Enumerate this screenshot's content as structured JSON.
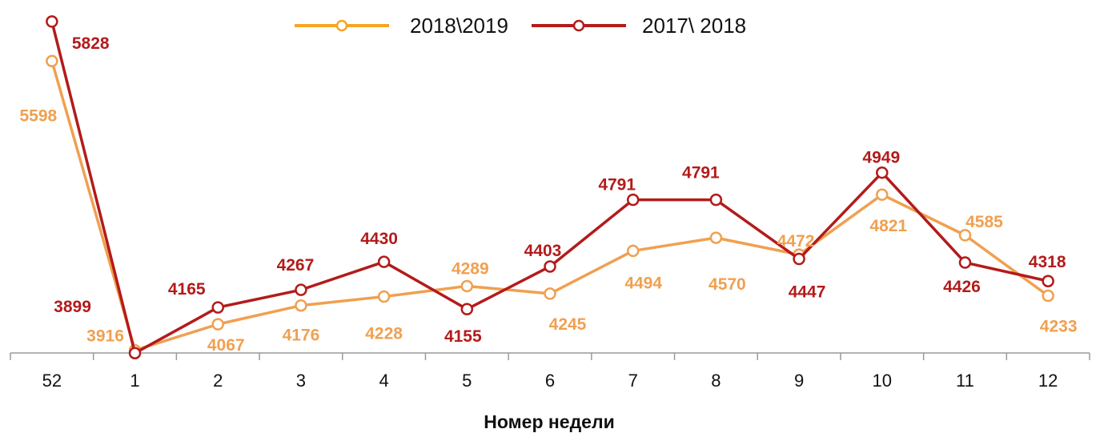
{
  "chart_data": {
    "type": "line",
    "title": "",
    "xlabel": "Номер недели",
    "ylabel": "",
    "categories": [
      "52",
      "1",
      "2",
      "3",
      "4",
      "5",
      "6",
      "7",
      "8",
      "9",
      "10",
      "11",
      "12"
    ],
    "ylim": [
      3900,
      5930
    ],
    "grid": false,
    "legend_position": "top-center",
    "series": [
      {
        "name": "2018\\2019",
        "color": "#F0A050",
        "legend_color": "#F5A623",
        "values": [
          5598,
          3916,
          4067,
          4176,
          4228,
          4289,
          4245,
          4494,
          4570,
          4472,
          4821,
          4585,
          4233
        ]
      },
      {
        "name": "2017\\ 2018",
        "color": "#B31B1B",
        "legend_color": "#B31B1B",
        "values": [
          5828,
          3899,
          4165,
          4267,
          4430,
          4155,
          4403,
          4791,
          4791,
          4447,
          4949,
          4426,
          4318
        ]
      }
    ]
  }
}
